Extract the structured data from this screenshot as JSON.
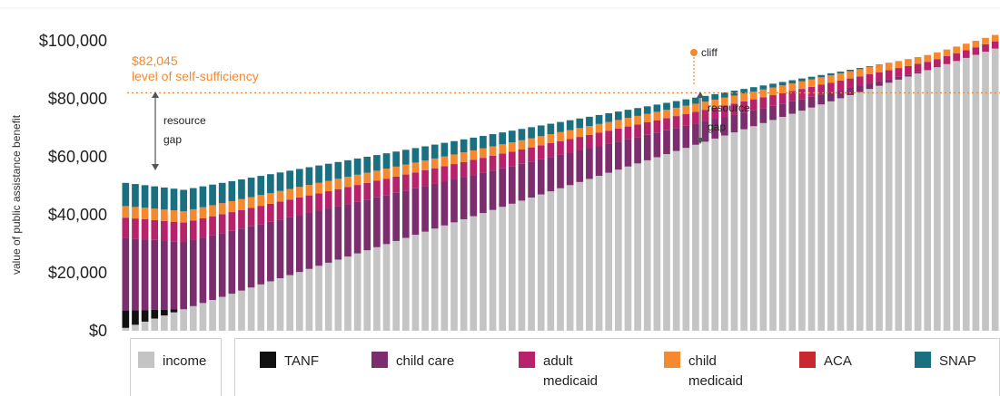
{
  "chart_data": {
    "type": "bar",
    "stacked": true,
    "ylabel": "value of public assistance benefit",
    "y_ticks": [
      "$0",
      "$20,000",
      "$40,000",
      "$60,000",
      "$80,000",
      "$100,000"
    ],
    "ylim": [
      0,
      100000
    ],
    "num_bars": 91,
    "grid": false,
    "legend_position": "bottom",
    "self_sufficiency": {
      "value": 82045,
      "value_label": "$82,045",
      "label": "level of self-sufficiency"
    },
    "annotations": {
      "resource_gap_1": "resource",
      "resource_gap_2": "gap",
      "cliff": "cliff"
    },
    "series": [
      {
        "key": "income",
        "name": "income",
        "color": "#c4c4c4",
        "values": [
          1000,
          2070,
          3140,
          4210,
          5280,
          6350,
          7420,
          8490,
          9560,
          10630,
          11700,
          12770,
          13840,
          14910,
          15980,
          17050,
          18120,
          19190,
          20260,
          21330,
          22400,
          23470,
          24540,
          25610,
          26680,
          27750,
          28820,
          29890,
          30960,
          32030,
          33100,
          34170,
          35240,
          36310,
          37380,
          38450,
          39520,
          40590,
          41660,
          42730,
          43800,
          44870,
          45940,
          47010,
          48080,
          49150,
          50220,
          51290,
          52360,
          53430,
          54500,
          55570,
          56640,
          57710,
          58780,
          59850,
          60920,
          61990,
          63060,
          64130,
          65200,
          66270,
          67340,
          68410,
          69480,
          70550,
          71620,
          72690,
          73760,
          74830,
          75900,
          76970,
          78040,
          79110,
          80180,
          81250,
          82320,
          83390,
          84460,
          85530,
          86600,
          87670,
          88740,
          89810,
          90880,
          91950,
          93020,
          94090,
          95160,
          96230,
          97300
        ]
      },
      {
        "key": "tanf",
        "name": "TANF",
        "color": "#111111",
        "values": [
          6000,
          5000,
          4000,
          3000,
          2000,
          1000,
          0,
          0,
          0,
          0,
          0,
          0,
          0,
          0,
          0,
          0,
          0,
          0,
          0,
          0,
          0,
          0,
          0,
          0,
          0,
          0,
          0,
          0,
          0,
          0,
          0,
          0,
          0,
          0,
          0,
          0,
          0,
          0,
          0,
          0,
          0,
          0,
          0,
          0,
          0,
          0,
          0,
          0,
          0,
          0,
          0,
          0,
          0,
          0,
          0,
          0,
          0,
          0,
          0,
          0,
          0,
          0,
          0,
          0,
          0,
          0,
          0,
          0,
          0,
          0,
          0,
          0,
          0,
          0,
          0,
          0,
          0,
          0,
          0,
          0,
          0,
          0,
          0,
          0,
          0,
          0,
          0,
          0,
          0,
          0,
          0
        ]
      },
      {
        "key": "childcare",
        "name": "child care",
        "color": "#7b2d6e",
        "values": [
          25000,
          24700,
          24400,
          24100,
          23800,
          23500,
          23200,
          22900,
          22600,
          22300,
          22000,
          21700,
          21400,
          21100,
          20800,
          20500,
          20200,
          19900,
          19600,
          19300,
          19000,
          18700,
          18400,
          18100,
          17800,
          17500,
          17200,
          16900,
          16600,
          16300,
          16000,
          15700,
          15400,
          15100,
          14800,
          14500,
          14200,
          13900,
          13600,
          13300,
          13000,
          12700,
          12400,
          12100,
          11800,
          11500,
          11200,
          10900,
          10600,
          10300,
          10000,
          9700,
          9400,
          9100,
          8800,
          8500,
          8200,
          7900,
          7600,
          7300,
          7000,
          6700,
          6400,
          6100,
          5800,
          5500,
          5200,
          4900,
          4600,
          4300,
          4000,
          3700,
          3400,
          3100,
          2800,
          2500,
          2200,
          1900,
          1600,
          1300,
          1000,
          700,
          400,
          100,
          0,
          0,
          0,
          0,
          0,
          0,
          0
        ]
      },
      {
        "key": "adultmed",
        "name": "adult medicaid",
        "color": "#b8226a",
        "values": [
          7000,
          6950,
          6900,
          6850,
          6800,
          6750,
          6700,
          6650,
          6600,
          6550,
          6500,
          6450,
          6400,
          6350,
          6300,
          6250,
          6200,
          6150,
          6100,
          6050,
          6000,
          5950,
          5900,
          5850,
          5800,
          5750,
          5700,
          5650,
          5600,
          5550,
          5500,
          5450,
          5400,
          5350,
          5300,
          5250,
          5200,
          5150,
          5100,
          5050,
          5000,
          4950,
          4900,
          4850,
          4800,
          4750,
          4700,
          4650,
          4600,
          4550,
          4500,
          4450,
          4400,
          4350,
          4300,
          4250,
          4200,
          4150,
          4100,
          4050,
          4000,
          3950,
          3900,
          3850,
          3800,
          3750,
          3700,
          3650,
          3600,
          3550,
          3500,
          3450,
          3400,
          3350,
          3300,
          3250,
          3200,
          3150,
          3100,
          3050,
          3000,
          2950,
          2900,
          2850,
          2800,
          2750,
          2700,
          2650,
          2600,
          2550,
          2500
        ]
      },
      {
        "key": "childmed",
        "name": "child medicaid",
        "color": "#f4892f",
        "values": [
          4000,
          3980,
          3960,
          3940,
          3920,
          3900,
          3880,
          3860,
          3840,
          3820,
          3800,
          3780,
          3760,
          3740,
          3720,
          3700,
          3680,
          3660,
          3640,
          3620,
          3600,
          3580,
          3560,
          3540,
          3520,
          3500,
          3480,
          3460,
          3440,
          3420,
          3400,
          3380,
          3360,
          3340,
          3320,
          3300,
          3280,
          3260,
          3240,
          3220,
          3200,
          3180,
          3160,
          3140,
          3120,
          3100,
          3080,
          3060,
          3040,
          3020,
          3000,
          2980,
          2960,
          2940,
          2920,
          2900,
          2880,
          2860,
          2840,
          2820,
          2800,
          2780,
          2760,
          2740,
          2720,
          2700,
          2680,
          2660,
          2640,
          2620,
          2600,
          2580,
          2560,
          2540,
          2520,
          2500,
          2480,
          2460,
          2440,
          2420,
          2400,
          2380,
          2360,
          2340,
          2320,
          2300,
          2280,
          2260,
          2240,
          2220,
          2200
        ]
      },
      {
        "key": "aca",
        "name": "ACA",
        "color": "#c8282e",
        "values": [
          0,
          0,
          0,
          0,
          0,
          0,
          0,
          0,
          0,
          0,
          0,
          0,
          0,
          0,
          0,
          0,
          0,
          0,
          0,
          0,
          0,
          0,
          0,
          0,
          0,
          0,
          0,
          0,
          0,
          0,
          0,
          0,
          0,
          0,
          0,
          0,
          0,
          0,
          0,
          0,
          0,
          0,
          0,
          0,
          0,
          0,
          0,
          0,
          0,
          0,
          0,
          0,
          0,
          0,
          0,
          0,
          0,
          0,
          0,
          0,
          0,
          0,
          0,
          0,
          0,
          0,
          0,
          0,
          0,
          0,
          0,
          0,
          0,
          0,
          0,
          0,
          0,
          0,
          0,
          0,
          0,
          0,
          0,
          0,
          0,
          0,
          0,
          0,
          0,
          0,
          0
        ]
      },
      {
        "key": "snap",
        "name": "SNAP",
        "color": "#1a6f80",
        "values": [
          8000,
          7900,
          7800,
          7700,
          7600,
          7500,
          7400,
          7300,
          7200,
          7100,
          7000,
          6900,
          6800,
          6700,
          6600,
          6500,
          6400,
          6300,
          6200,
          6100,
          6000,
          5900,
          5800,
          5700,
          5600,
          5500,
          5400,
          5300,
          5200,
          5100,
          5000,
          4900,
          4800,
          4700,
          4600,
          4500,
          4400,
          4300,
          4200,
          4100,
          4000,
          3900,
          3800,
          3700,
          3600,
          3500,
          3400,
          3300,
          3200,
          3100,
          3000,
          2900,
          2800,
          2700,
          2600,
          2500,
          2400,
          2300,
          2200,
          2100,
          2000,
          1900,
          1800,
          1700,
          1600,
          1500,
          1400,
          1300,
          1200,
          1100,
          1000,
          900,
          800,
          700,
          600,
          500,
          400,
          300,
          200,
          100,
          0,
          0,
          0,
          0,
          0,
          0,
          0,
          0,
          0,
          0,
          0
        ]
      }
    ]
  },
  "legend": [
    {
      "key": "income",
      "label": "income",
      "color": "#c4c4c4"
    },
    {
      "key": "tanf",
      "label": "TANF",
      "color": "#111111"
    },
    {
      "key": "childcare",
      "label": "child care",
      "color": "#7b2d6e"
    },
    {
      "key": "adultmed",
      "label": "adult medicaid",
      "color": "#b8226a"
    },
    {
      "key": "childmed",
      "label": "child medicaid",
      "color": "#f4892f"
    },
    {
      "key": "aca",
      "label": "ACA",
      "color": "#c8282e"
    },
    {
      "key": "snap",
      "label": "SNAP",
      "color": "#1a6f80"
    }
  ]
}
